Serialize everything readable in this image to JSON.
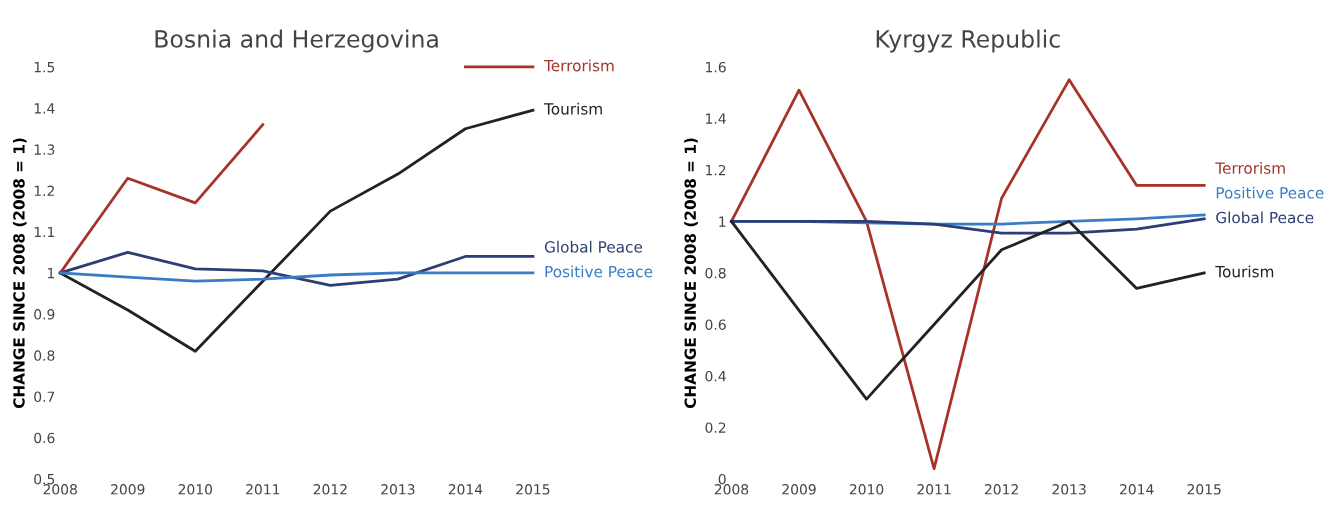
{
  "chart_data": [
    {
      "type": "line",
      "title": "Bosnia and Herzegovina",
      "ylabel": "CHANGE SINCE 2008 (2008 = 1)",
      "x": [
        2008,
        2009,
        2010,
        2011,
        2012,
        2013,
        2014,
        2015
      ],
      "xlim": [
        2008,
        2015
      ],
      "xticks": [
        2008,
        2009,
        2010,
        2011,
        2012,
        2013,
        2014,
        2015
      ],
      "ylim": [
        0.5,
        1.5
      ],
      "yticks": [
        0.5,
        0.6,
        0.7,
        0.8,
        0.9,
        1,
        1.1,
        1.2,
        1.3,
        1.4,
        1.5
      ],
      "grid": false,
      "legend": false,
      "series": [
        {
          "name": "Terrorism",
          "color": "#a83228",
          "values": [
            1.0,
            1.23,
            1.17,
            1.36,
            null,
            null,
            1.5,
            1.5
          ]
        },
        {
          "name": "Tourism",
          "color": "#222222",
          "values": [
            1.0,
            0.91,
            0.81,
            0.98,
            1.15,
            1.24,
            1.35,
            1.395
          ]
        },
        {
          "name": "Global Peace",
          "color": "#2c3e73",
          "values": [
            1.0,
            1.05,
            1.01,
            1.005,
            0.97,
            0.985,
            1.04,
            1.04
          ]
        },
        {
          "name": "Positive Peace",
          "color": "#3a7cc4",
          "values": [
            1.0,
            0.99,
            0.98,
            0.985,
            0.995,
            1.0,
            1.0,
            1.0
          ]
        }
      ]
    },
    {
      "type": "line",
      "title": "Kyrgyz Republic",
      "ylabel": "CHANGE SINCE 2008 (2008 = 1)",
      "x": [
        2008,
        2009,
        2010,
        2011,
        2012,
        2013,
        2014,
        2015
      ],
      "xlim": [
        2008,
        2015
      ],
      "xticks": [
        2008,
        2009,
        2010,
        2011,
        2012,
        2013,
        2014,
        2015
      ],
      "ylim": [
        0,
        1.6
      ],
      "yticks": [
        0,
        0.2,
        0.4,
        0.6,
        0.8,
        1,
        1.2,
        1.4,
        1.6
      ],
      "grid": false,
      "legend": false,
      "series": [
        {
          "name": "Terrorism",
          "color": "#a83228",
          "values": [
            1.0,
            1.51,
            1.0,
            0.04,
            1.09,
            1.55,
            1.14,
            1.14
          ]
        },
        {
          "name": "Positive Peace",
          "color": "#3a7cc4",
          "values": [
            1.0,
            1.0,
            0.995,
            0.99,
            0.99,
            1.0,
            1.01,
            1.025
          ]
        },
        {
          "name": "Global Peace",
          "color": "#2c3e73",
          "values": [
            1.0,
            1.0,
            1.0,
            0.99,
            0.955,
            0.955,
            0.97,
            1.01
          ]
        },
        {
          "name": "Tourism",
          "color": "#222222",
          "values": [
            1.0,
            0.655,
            0.31,
            0.6,
            0.89,
            1.0,
            0.74,
            0.8
          ]
        }
      ]
    }
  ]
}
